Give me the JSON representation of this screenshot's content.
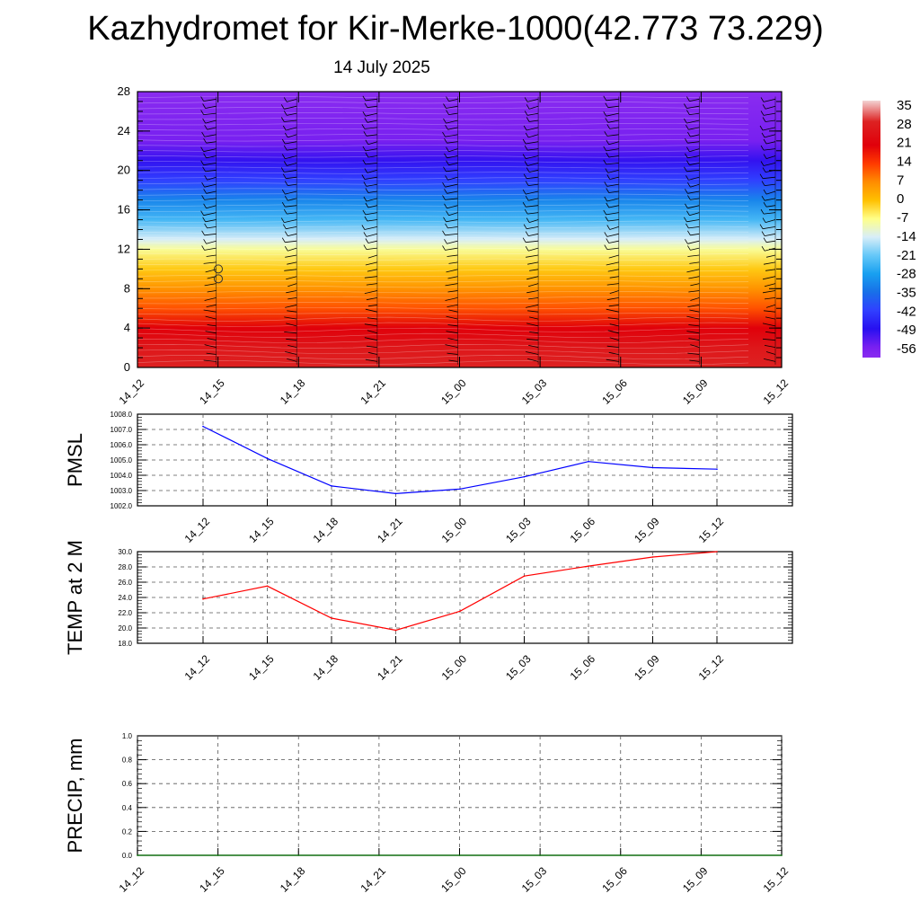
{
  "title": "Kazhydromet for Kir-Merke-1000(42.773 73.229)",
  "subtitle": "14 July 2025",
  "colors": {
    "pmsl_line": "#0000ff",
    "temp_line": "#ff0000",
    "precip_line": "#007000",
    "frame": "#000000",
    "grid": "#555555"
  },
  "chart_data": [
    {
      "type": "heatmap",
      "name": "cross-section",
      "x_ticks": [
        "14_12",
        "14_15",
        "14_18",
        "14_21",
        "15_00",
        "15_03",
        "15_06",
        "15_09",
        "15_12"
      ],
      "y_ticks": [
        0,
        4,
        8,
        12,
        16,
        20,
        24,
        28
      ],
      "ylim": [
        0,
        28
      ],
      "colorbar": {
        "labels": [
          "35",
          "28",
          "21",
          "14",
          "7",
          "0",
          "-7",
          "-14",
          "-21",
          "-28",
          "-35",
          "-42",
          "-49",
          "-56"
        ],
        "range": [
          -60,
          38
        ],
        "stops": [
          {
            "v": 38,
            "c": "#f3d3d3"
          },
          {
            "v": 30,
            "c": "#dd2222"
          },
          {
            "v": 21,
            "c": "#e0000a"
          },
          {
            "v": 14,
            "c": "#ff3a00"
          },
          {
            "v": 7,
            "c": "#ff8c00"
          },
          {
            "v": 0,
            "c": "#ffc000"
          },
          {
            "v": -7,
            "c": "#ffff88"
          },
          {
            "v": -14,
            "c": "#d8eef8"
          },
          {
            "v": -21,
            "c": "#66c8f8"
          },
          {
            "v": -28,
            "c": "#18a0f0"
          },
          {
            "v": -35,
            "c": "#1870e8"
          },
          {
            "v": -42,
            "c": "#3040ff"
          },
          {
            "v": -49,
            "c": "#2810f0"
          },
          {
            "v": -56,
            "c": "#7820f0"
          },
          {
            "v": -60,
            "c": "#8a2cf0"
          }
        ]
      },
      "vertical_profile": [
        {
          "y": 0,
          "t": 30
        },
        {
          "y": 2,
          "t": 27
        },
        {
          "y": 4,
          "t": 21
        },
        {
          "y": 6,
          "t": 12
        },
        {
          "y": 8,
          "t": 6
        },
        {
          "y": 10,
          "t": -1
        },
        {
          "y": 12,
          "t": -8
        },
        {
          "y": 13,
          "t": -14
        },
        {
          "y": 15,
          "t": -24
        },
        {
          "y": 17,
          "t": -32
        },
        {
          "y": 19,
          "t": -42
        },
        {
          "y": 21,
          "t": -50
        },
        {
          "y": 23,
          "t": -56
        },
        {
          "y": 28,
          "t": -60
        }
      ]
    },
    {
      "type": "line",
      "name": "PMSL",
      "ylabel": "PMSL",
      "ylim": [
        1002,
        1008
      ],
      "y_ticks": [
        "1002.0",
        "1003.0",
        "1004.0",
        "1005.0",
        "1006.0",
        "1007.0",
        "1008.0"
      ],
      "categories": [
        "14_12",
        "14_15",
        "14_18",
        "14_21",
        "15_00",
        "15_03",
        "15_06",
        "15_09",
        "15_12"
      ],
      "values": [
        1007.2,
        1005.1,
        1003.3,
        1002.8,
        1003.1,
        1003.9,
        1004.9,
        1004.5,
        1004.4
      ]
    },
    {
      "type": "line",
      "name": "TEMP",
      "ylabel": "TEMP at 2 M",
      "ylim": [
        18,
        30
      ],
      "y_ticks": [
        "18.0",
        "20.0",
        "22.0",
        "24.0",
        "26.0",
        "28.0",
        "30.0"
      ],
      "categories": [
        "14_12",
        "14_15",
        "14_18",
        "14_21",
        "15_00",
        "15_03",
        "15_06",
        "15_09",
        "15_12"
      ],
      "values": [
        23.8,
        25.5,
        21.3,
        19.7,
        22.2,
        26.8,
        28.1,
        29.3,
        30.0
      ]
    },
    {
      "type": "line",
      "name": "PRECIP",
      "ylabel": "PRECIP, mm",
      "ylim": [
        0,
        1
      ],
      "y_ticks": [
        "0.0",
        "0.2",
        "0.4",
        "0.6",
        "0.8",
        "1.0"
      ],
      "categories": [
        "14_12",
        "14_15",
        "14_18",
        "14_21",
        "15_00",
        "15_03",
        "15_06",
        "15_09",
        "15_12"
      ],
      "values": [
        0,
        0,
        0,
        0,
        0,
        0,
        0,
        0,
        0
      ]
    }
  ]
}
